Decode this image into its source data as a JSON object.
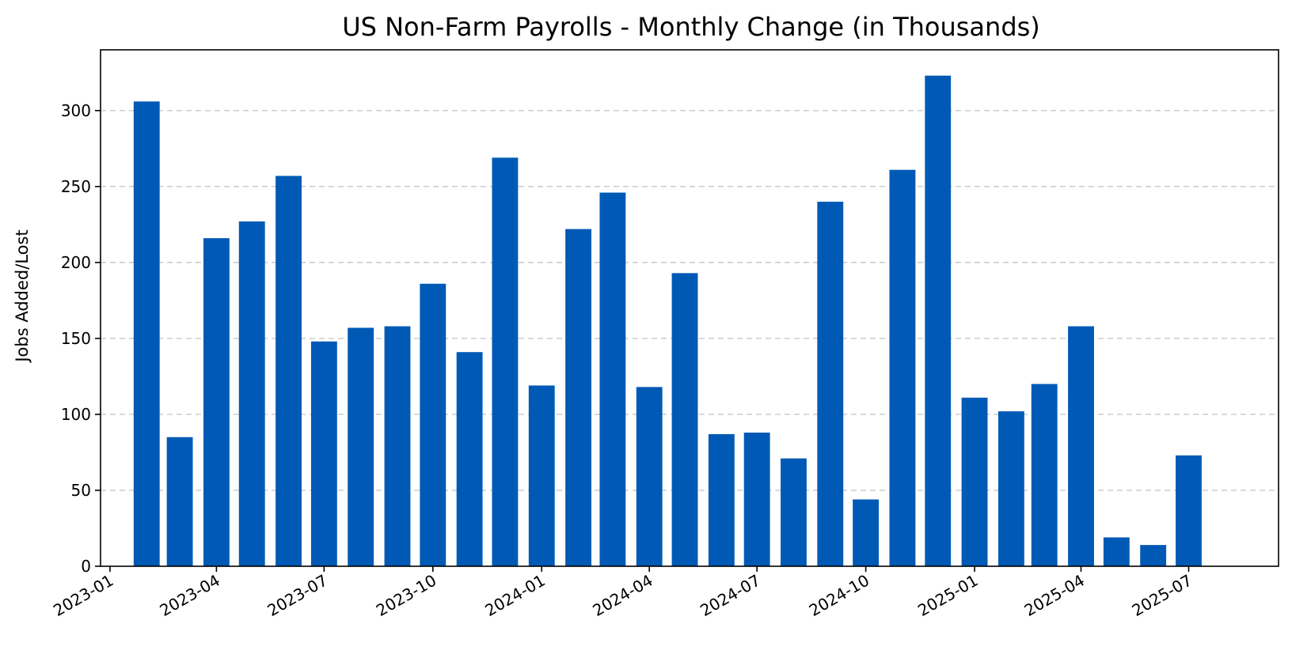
{
  "chart_data": {
    "type": "bar",
    "title": "US Non-Farm Payrolls - Monthly Change (in Thousands)",
    "xlabel": "",
    "ylabel": "Jobs Added/Lost",
    "bar_color": "#005AB5",
    "grid": "horizontal dashed",
    "ylim": [
      0,
      340
    ],
    "xlim": [
      "2022-12-24",
      "2025-09-15"
    ],
    "yticks": [
      0,
      50,
      100,
      150,
      200,
      250,
      300
    ],
    "xticks": [
      "2023-01",
      "2023-04",
      "2023-07",
      "2023-10",
      "2024-01",
      "2024-04",
      "2024-07",
      "2024-10",
      "2025-01",
      "2025-04",
      "2025-07"
    ],
    "categories": [
      "2023-02",
      "2023-03",
      "2023-04",
      "2023-05",
      "2023-06",
      "2023-07",
      "2023-08",
      "2023-09",
      "2023-10",
      "2023-11",
      "2023-12",
      "2024-01",
      "2024-02",
      "2024-03",
      "2024-04",
      "2024-05",
      "2024-06",
      "2024-07",
      "2024-08",
      "2024-09",
      "2024-10",
      "2024-11",
      "2024-12",
      "2025-01",
      "2025-02",
      "2025-03",
      "2025-04",
      "2025-05",
      "2025-06",
      "2025-07"
    ],
    "values": [
      306,
      85,
      216,
      227,
      257,
      148,
      157,
      158,
      186,
      141,
      269,
      119,
      222,
      246,
      118,
      193,
      87,
      88,
      71,
      240,
      44,
      261,
      323,
      111,
      102,
      120,
      158,
      19,
      14,
      73
    ]
  }
}
